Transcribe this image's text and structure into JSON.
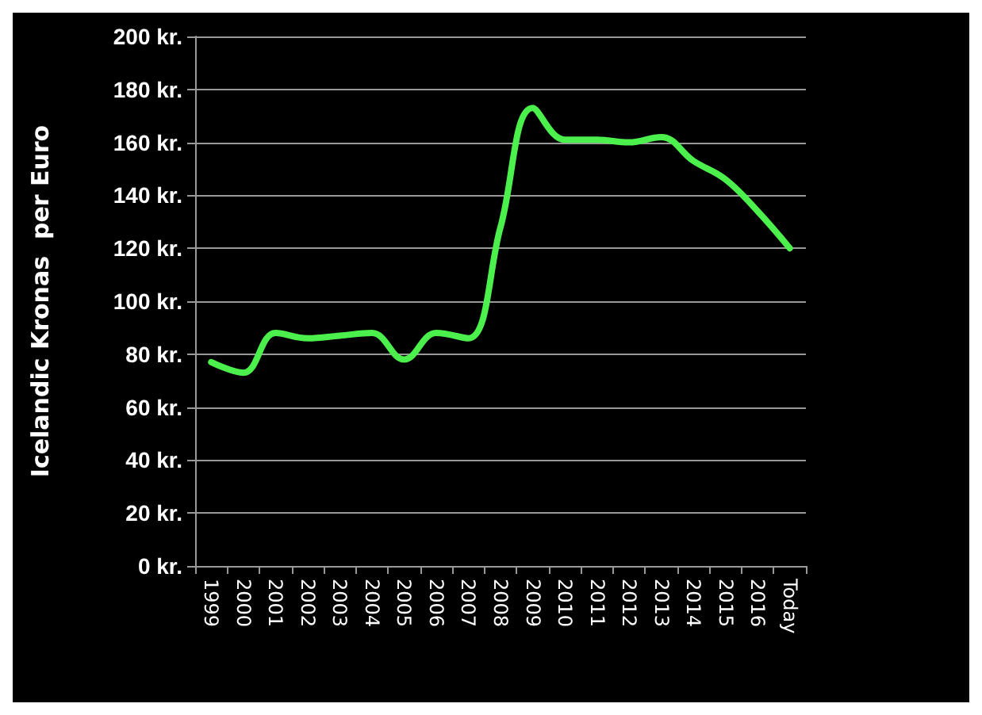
{
  "chart_data": {
    "type": "line",
    "ylabel": "Icelandic Kronas  per Euro",
    "categories": [
      "1999",
      "2000",
      "2001",
      "2002",
      "2003",
      "2004",
      "2005",
      "2006",
      "2007",
      "2008",
      "2009",
      "2010",
      "2011",
      "2012",
      "2013",
      "2014",
      "2015",
      "2016",
      "Today"
    ],
    "series": [
      {
        "color": "#4cf04c",
        "values": [
          77,
          73,
          88,
          86,
          87,
          88,
          78,
          88,
          86,
          128,
          173,
          161,
          161,
          160,
          162,
          153,
          146,
          134,
          120
        ]
      }
    ],
    "ylim": [
      0,
      200
    ],
    "yticks": [
      {
        "value": 0,
        "label": "0 kr."
      },
      {
        "value": 20,
        "label": "20 kr."
      },
      {
        "value": 40,
        "label": "40 kr."
      },
      {
        "value": 60,
        "label": "60 kr."
      },
      {
        "value": 80,
        "label": "80 kr."
      },
      {
        "value": 100,
        "label": "100 kr."
      },
      {
        "value": 120,
        "label": "120 kr."
      },
      {
        "value": 140,
        "label": "140 kr."
      },
      {
        "value": 160,
        "label": "160 kr."
      },
      {
        "value": 180,
        "label": "180 kr."
      },
      {
        "value": 200,
        "label": "200 kr."
      }
    ],
    "grid": "y",
    "marker": "none",
    "line_style": "solid"
  }
}
